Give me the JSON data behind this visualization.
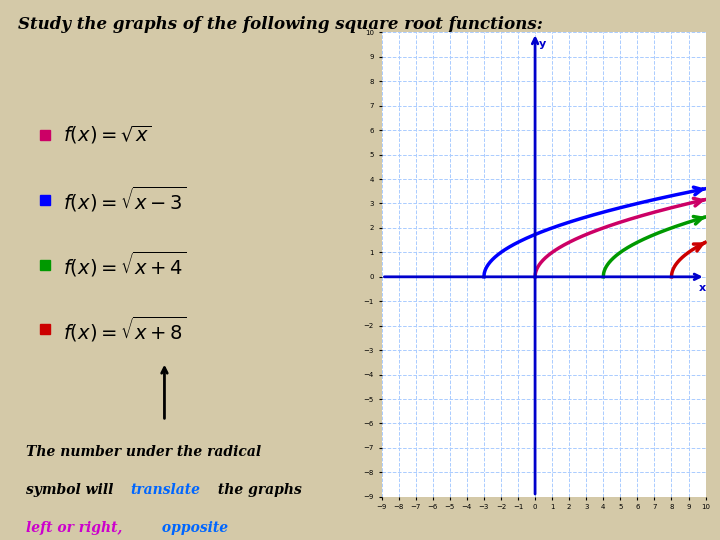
{
  "title": "Study the graphs of the following square root functions:",
  "bg_color": "#d4c9a8",
  "graph_bg": "#ffffff",
  "functions": [
    {
      "shift": 0,
      "color": "#cc0066",
      "bullet": "#cc0066"
    },
    {
      "shift": 3,
      "color": "#0000ff",
      "bullet": "#0000ff"
    },
    {
      "shift": -4,
      "color": "#009900",
      "bullet": "#009900"
    },
    {
      "shift": -8,
      "color": "#cc0000",
      "bullet": "#cc0000"
    }
  ],
  "axis_xlim": [
    -9,
    10
  ],
  "axis_ylim": [
    -9,
    10
  ],
  "grid_color": "#aaccff",
  "axis_color": "#0000cc",
  "translate_color": "#0066ff",
  "left_right_color": "#cc00cc",
  "opposite_color": "#0066ff"
}
